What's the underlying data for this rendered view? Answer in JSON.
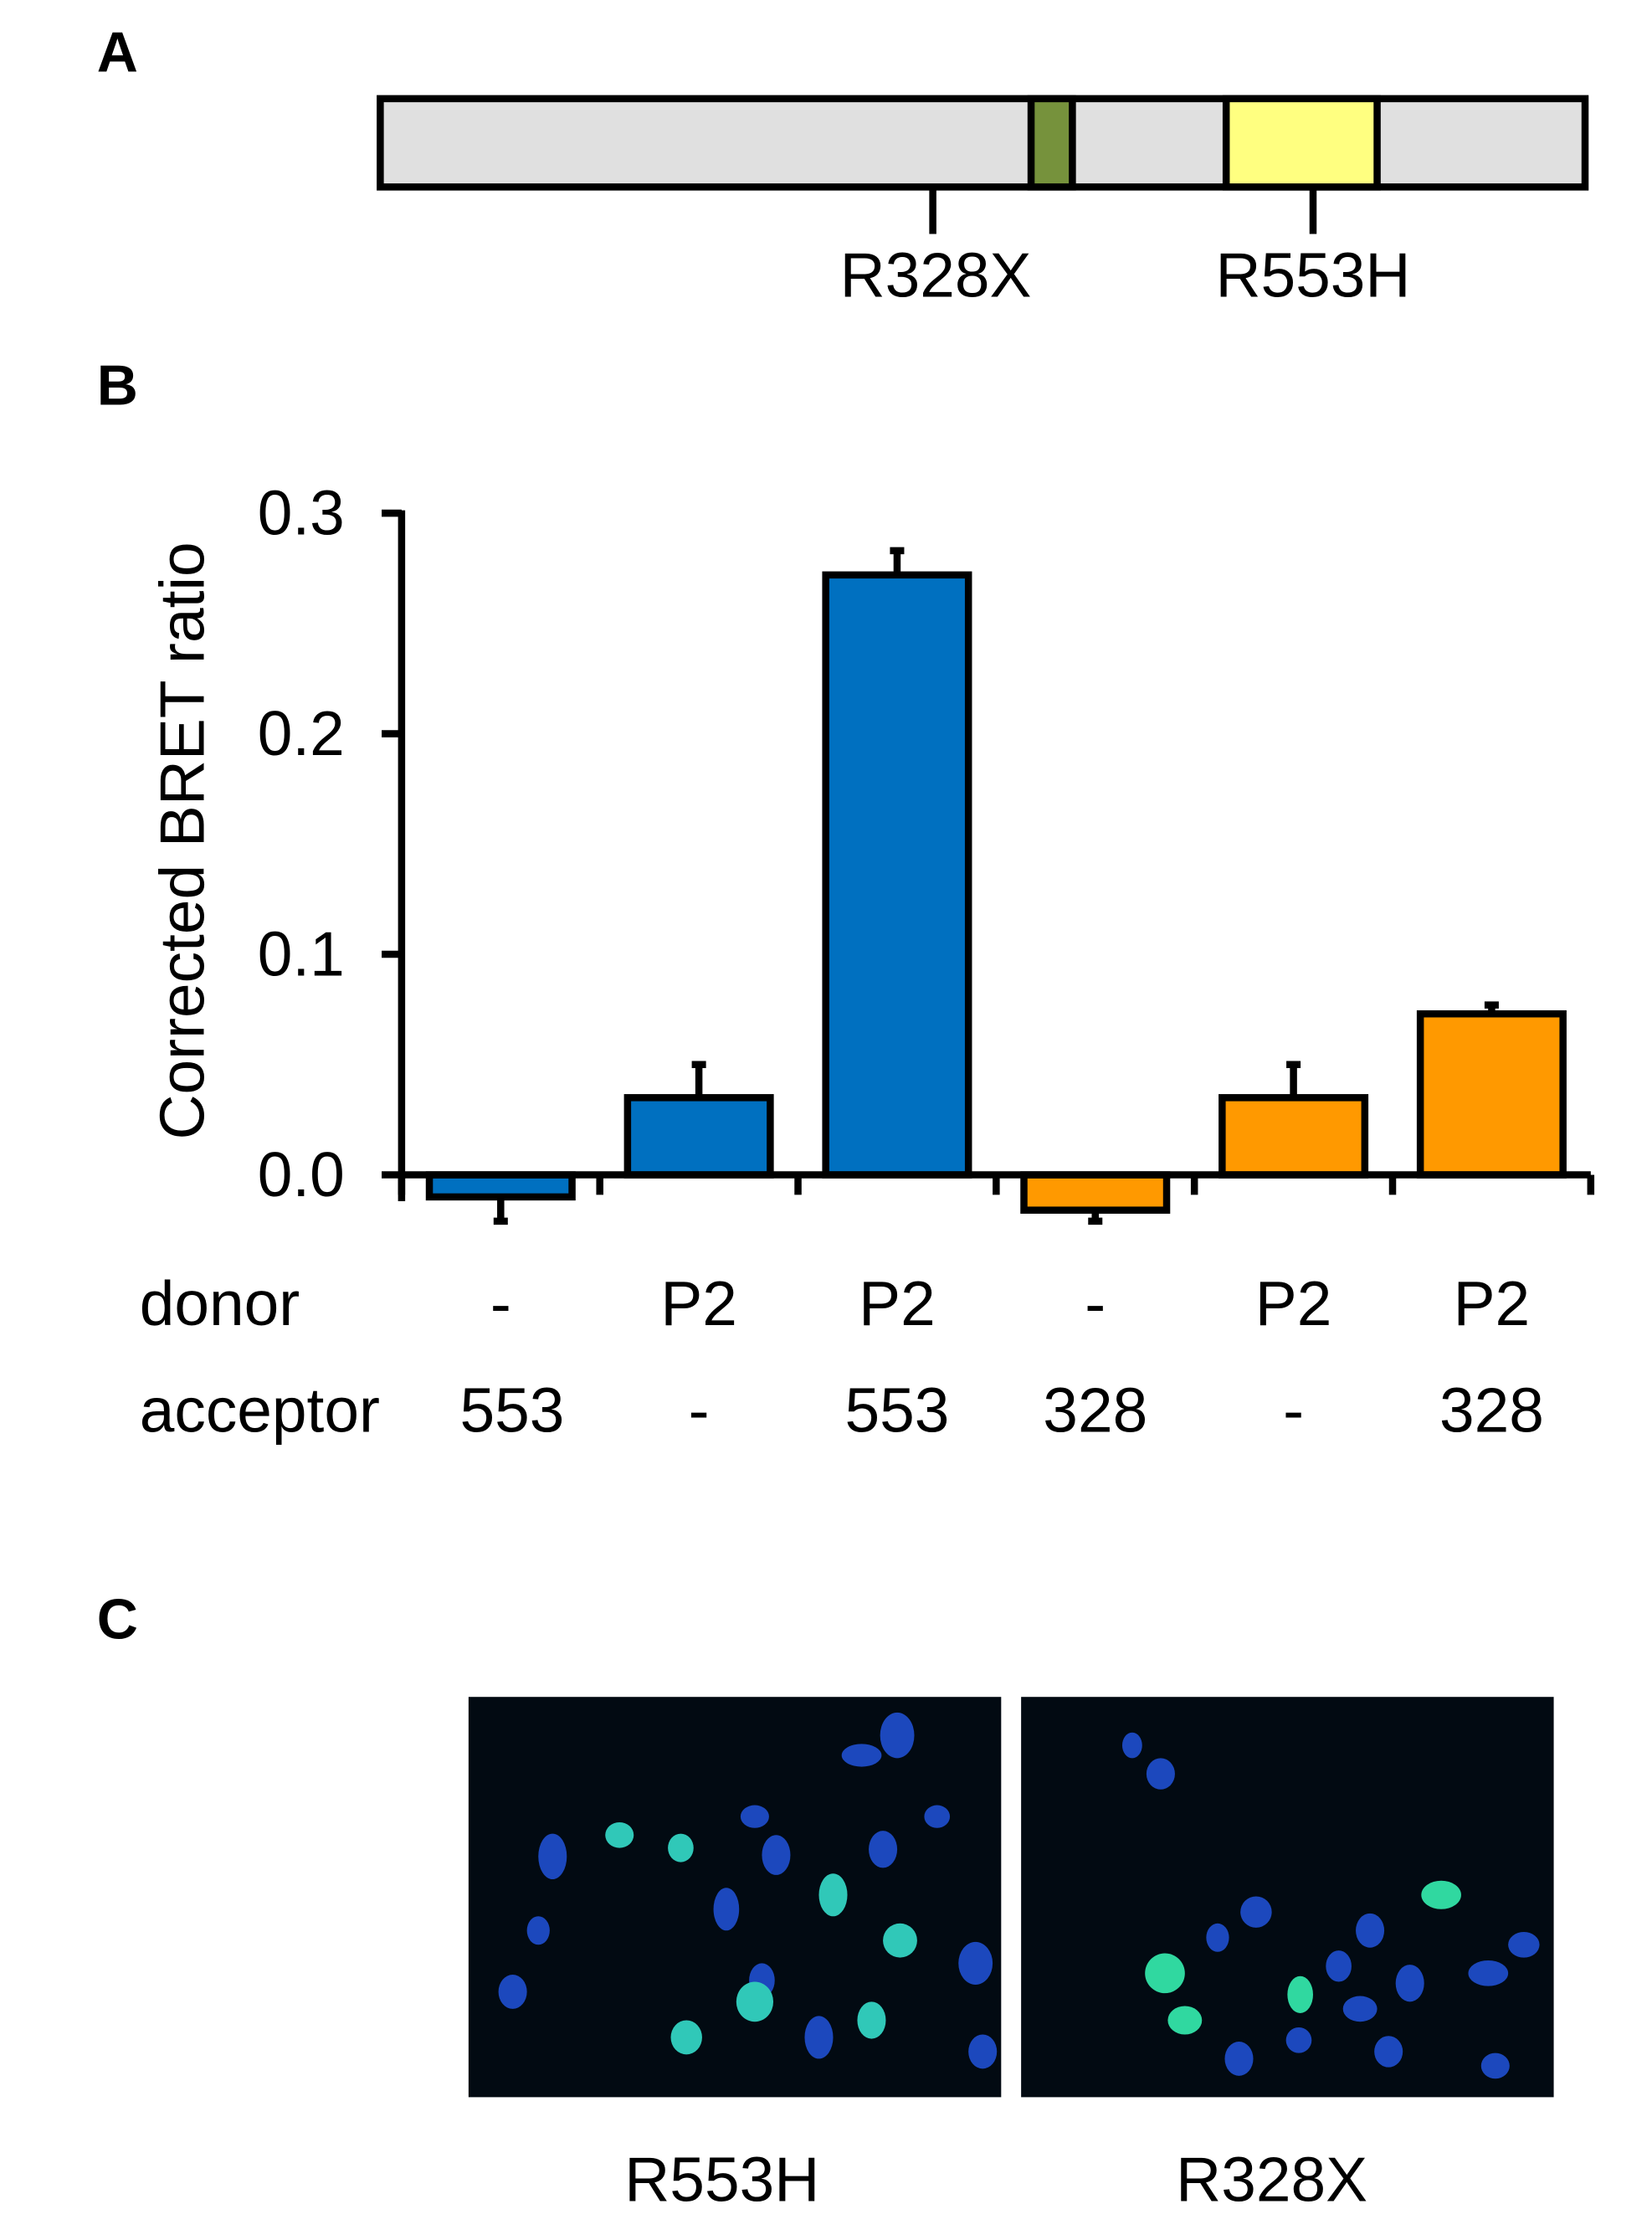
{
  "panel_labels": [
    "A",
    "B",
    "C"
  ],
  "protein_diagram": {
    "mutations": [
      "R328X",
      "R553H"
    ]
  },
  "chart_data": {
    "type": "bar",
    "y_label": "Corrected BRET ratio",
    "category_rows": [
      {
        "name": "donor",
        "values": [
          "-",
          "P2",
          "P2",
          "-",
          "P2",
          "P2"
        ]
      },
      {
        "name": "acceptor",
        "values": [
          "553",
          "-",
          "553",
          "328",
          "-",
          "328"
        ]
      }
    ],
    "values": [
      -0.01,
      0.035,
      0.272,
      -0.016,
      0.035,
      0.073
    ],
    "errors": [
      0.011,
      0.015,
      0.011,
      0.005,
      0.015,
      0.004
    ],
    "colors": [
      "#0070c0",
      "#0070c0",
      "#0070c0",
      "#ff9900",
      "#ff9900",
      "#ff9900"
    ],
    "ylim": [
      -0.01,
      0.3
    ],
    "yticks": [
      {
        "value": 0,
        "label": "0.0"
      },
      0.1,
      0.2,
      0.3
    ]
  },
  "micrographs": {
    "labels": [
      "R553H",
      "R328X"
    ]
  }
}
